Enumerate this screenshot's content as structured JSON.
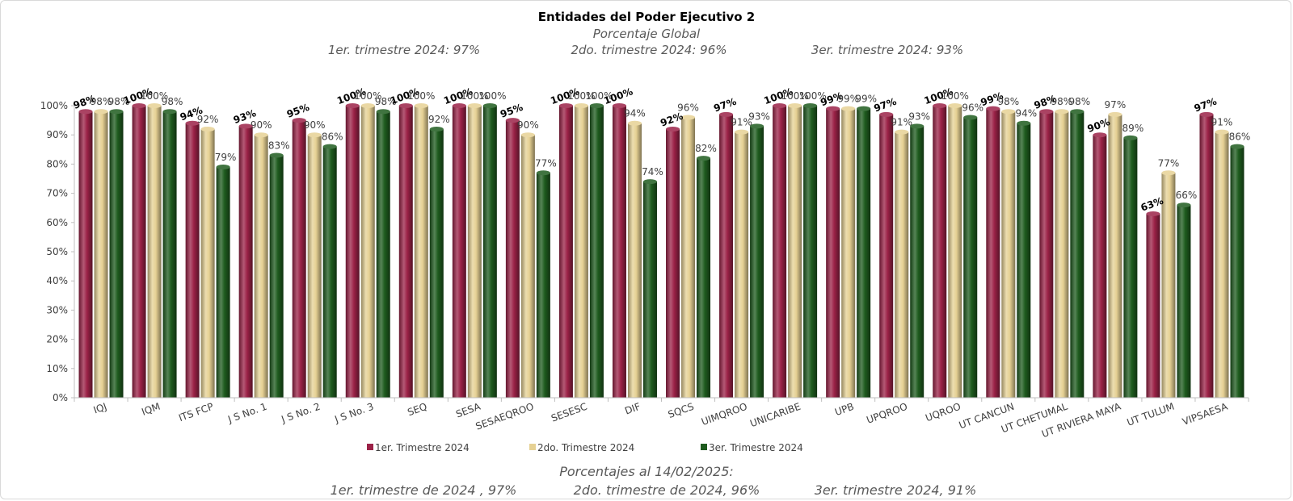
{
  "chart_data": {
    "type": "bar",
    "title": "Entidades del Poder Ejecutivo 2",
    "subtitle": "Porcentaje Global",
    "quarter_notes": [
      "1er. trimestre 2024: 97%",
      "2do. trimestre 2024: 96%",
      "3er. trimestre 2024: 93%"
    ],
    "footer_title": "Porcentajes al 14/02/2025:",
    "footer_notes": [
      "1er. trimestre de 2024 , 97%",
      "2do. trimestre de 2024, 96%",
      "3er. trimestre 2024, 91%"
    ],
    "ylim": [
      0,
      100
    ],
    "yticks": [
      "0%",
      "10%",
      "20%",
      "30%",
      "40%",
      "50%",
      "60%",
      "70%",
      "80%",
      "90%",
      "100%"
    ],
    "grid": false,
    "legend_position": "bottom",
    "categories": [
      "IQJ",
      "IQM",
      "ITS FCP",
      "J S No. 1",
      "J S No. 2",
      "J S No. 3",
      "SEQ",
      "SESA",
      "SESAEQROO",
      "SESESC",
      "DIF",
      "SQCS",
      "UIMQROO",
      "UNICARIBE",
      "UPB",
      "UPQROO",
      "UQROO",
      "UT CANCUN",
      "UT CHETUMAL",
      "UT RIVIERA MAYA",
      "UT TULUM",
      "VIPSAESA"
    ],
    "series": [
      {
        "name": "1er. Trimestre 2024",
        "color": "#9b2247",
        "values": [
          98,
          100,
          94,
          93,
          95,
          100,
          100,
          100,
          95,
          100,
          100,
          92,
          97,
          100,
          99,
          97,
          100,
          99,
          98,
          90,
          63,
          97
        ],
        "labels": [
          "98%",
          "100%",
          "94%",
          "93%",
          "95%",
          "100%",
          "100%",
          "100%",
          "95%",
          "100%",
          "100%",
          "92%",
          "97%",
          "100%",
          "99%",
          "97%",
          "100%",
          "99%",
          "98%",
          "90%",
          "63%",
          "97%"
        ]
      },
      {
        "name": "2do. Trimestre 2024",
        "color": "#e6d194",
        "values": [
          98,
          100,
          92,
          90,
          90,
          100,
          100,
          100,
          90,
          100,
          94,
          96,
          91,
          100,
          99,
          91,
          100,
          98,
          98,
          97,
          77,
          91
        ],
        "labels": [
          "98%",
          "100%",
          "92%",
          "90%",
          "90%",
          "100%",
          "100%",
          "100%",
          "90%",
          "100%",
          "94%",
          "96%",
          "91%",
          "100%",
          "99%",
          "91%",
          "100%",
          "98%",
          "98%",
          "97%",
          "77%",
          "91%"
        ]
      },
      {
        "name": "3er. Trimestre 2024",
        "color": "#1e5b1e",
        "values": [
          98,
          98,
          79,
          83,
          86,
          98,
          92,
          100,
          77,
          100,
          74,
          82,
          93,
          100,
          99,
          93,
          96,
          94,
          98,
          89,
          66,
          86
        ],
        "labels": [
          "98%",
          "98%",
          "79%",
          "83%",
          "86%",
          "98%",
          "92%",
          "100%",
          "77%",
          "100%",
          "74%",
          "82%",
          "93%",
          "100%",
          "99%",
          "93%",
          "96%",
          "94%",
          "98%",
          "89%",
          "66%",
          "86%"
        ]
      }
    ]
  }
}
